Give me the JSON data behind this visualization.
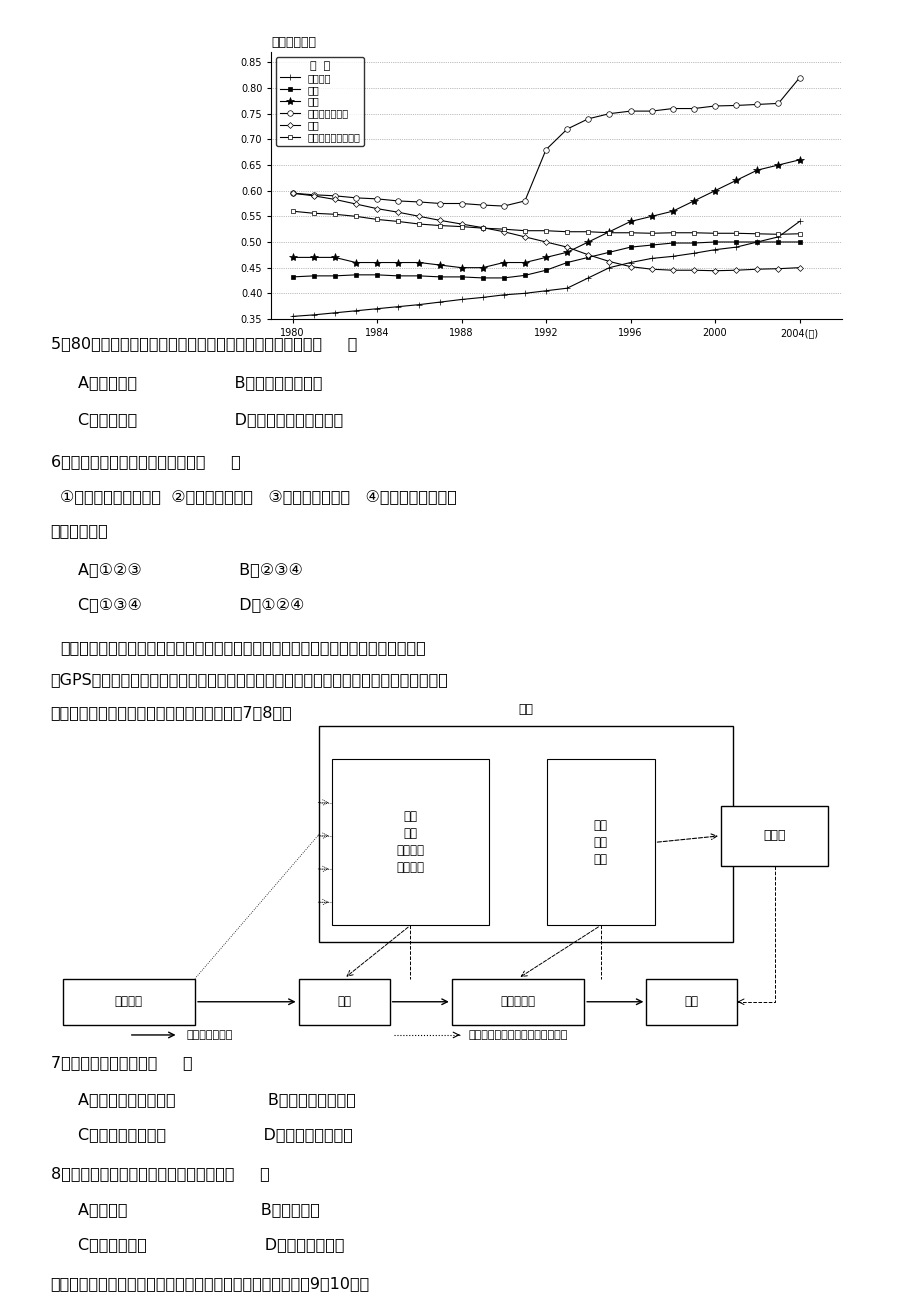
{
  "title": "产业集中程度",
  "yticks": [
    0.35,
    0.4,
    0.45,
    0.5,
    0.55,
    0.6,
    0.65,
    0.7,
    0.75,
    0.8,
    0.85
  ],
  "xticks": [
    1980,
    1984,
    1988,
    1992,
    1996,
    2000,
    2004
  ],
  "legend_title": "图  例",
  "series": {
    "食品加工": {
      "x": [
        1980,
        1981,
        1982,
        1983,
        1984,
        1985,
        1986,
        1987,
        1988,
        1989,
        1990,
        1991,
        1992,
        1993,
        1994,
        1995,
        1996,
        1997,
        1998,
        1999,
        2000,
        2001,
        2002,
        2003,
        2004
      ],
      "y": [
        0.355,
        0.358,
        0.362,
        0.366,
        0.37,
        0.374,
        0.378,
        0.383,
        0.388,
        0.392,
        0.397,
        0.4,
        0.405,
        0.41,
        0.43,
        0.45,
        0.46,
        0.468,
        0.472,
        0.478,
        0.485,
        0.49,
        0.5,
        0.51,
        0.54
      ],
      "marker": "+",
      "color": "#000000",
      "ms": 5,
      "mfc": "black"
    },
    "饮料": {
      "x": [
        1980,
        1981,
        1982,
        1983,
        1984,
        1985,
        1986,
        1987,
        1988,
        1989,
        1990,
        1991,
        1992,
        1993,
        1994,
        1995,
        1996,
        1997,
        1998,
        1999,
        2000,
        2001,
        2002,
        2003,
        2004
      ],
      "y": [
        0.432,
        0.434,
        0.434,
        0.436,
        0.436,
        0.434,
        0.434,
        0.432,
        0.432,
        0.43,
        0.43,
        0.435,
        0.445,
        0.46,
        0.47,
        0.48,
        0.49,
        0.494,
        0.498,
        0.498,
        0.5,
        0.5,
        0.5,
        0.5,
        0.5
      ],
      "marker": "s",
      "color": "#000000",
      "ms": 3,
      "mfc": "black"
    },
    "服装": {
      "x": [
        1980,
        1981,
        1982,
        1983,
        1984,
        1985,
        1986,
        1987,
        1988,
        1989,
        1990,
        1991,
        1992,
        1993,
        1994,
        1995,
        1996,
        1997,
        1998,
        1999,
        2000,
        2001,
        2002,
        2003,
        2004
      ],
      "y": [
        0.47,
        0.47,
        0.47,
        0.46,
        0.46,
        0.46,
        0.46,
        0.455,
        0.45,
        0.45,
        0.46,
        0.46,
        0.47,
        0.48,
        0.5,
        0.52,
        0.54,
        0.55,
        0.56,
        0.58,
        0.6,
        0.62,
        0.64,
        0.65,
        0.66
      ],
      "marker": "*",
      "color": "#000000",
      "ms": 5,
      "mfc": "black"
    },
    "电子与通讯设备": {
      "x": [
        1980,
        1981,
        1982,
        1983,
        1984,
        1985,
        1986,
        1987,
        1988,
        1989,
        1990,
        1991,
        1992,
        1993,
        1994,
        1995,
        1996,
        1997,
        1998,
        1999,
        2000,
        2001,
        2002,
        2003,
        2004
      ],
      "y": [
        0.595,
        0.592,
        0.59,
        0.586,
        0.584,
        0.58,
        0.578,
        0.575,
        0.575,
        0.572,
        0.57,
        0.58,
        0.68,
        0.72,
        0.74,
        0.75,
        0.755,
        0.755,
        0.76,
        0.76,
        0.765,
        0.766,
        0.768,
        0.77,
        0.82
      ],
      "marker": "o",
      "color": "#000000",
      "ms": 3,
      "mfc": "white"
    },
    "医药": {
      "x": [
        1980,
        1981,
        1982,
        1983,
        1984,
        1985,
        1986,
        1987,
        1988,
        1989,
        1990,
        1991,
        1992,
        1993,
        1994,
        1995,
        1996,
        1997,
        1998,
        1999,
        2000,
        2001,
        2002,
        2003,
        2004
      ],
      "y": [
        0.595,
        0.59,
        0.583,
        0.574,
        0.565,
        0.558,
        0.55,
        0.542,
        0.535,
        0.528,
        0.52,
        0.51,
        0.5,
        0.49,
        0.475,
        0.462,
        0.452,
        0.447,
        0.445,
        0.445,
        0.444,
        0.445,
        0.447,
        0.448,
        0.45
      ],
      "marker": "D",
      "color": "#000000",
      "ms": 3,
      "mfc": "white"
    },
    "黑色金属冶炼及加工": {
      "x": [
        1980,
        1981,
        1982,
        1983,
        1984,
        1985,
        1986,
        1987,
        1988,
        1989,
        1990,
        1991,
        1992,
        1993,
        1994,
        1995,
        1996,
        1997,
        1998,
        1999,
        2000,
        2001,
        2002,
        2003,
        2004
      ],
      "y": [
        0.56,
        0.556,
        0.554,
        0.55,
        0.544,
        0.54,
        0.535,
        0.532,
        0.53,
        0.527,
        0.525,
        0.522,
        0.522,
        0.52,
        0.52,
        0.518,
        0.518,
        0.517,
        0.518,
        0.518,
        0.517,
        0.517,
        0.516,
        0.515,
        0.516
      ],
      "marker": "s",
      "color": "#000000",
      "ms": 3,
      "mfc": "white"
    }
  }
}
